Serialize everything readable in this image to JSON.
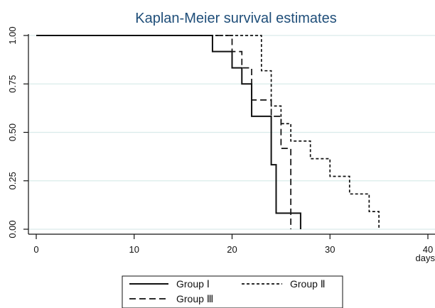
{
  "chart_data": {
    "type": "line",
    "step": true,
    "title": "Kaplan-Meier survival estimates",
    "xlabel": "days",
    "ylabel": "",
    "xlim": [
      0,
      40
    ],
    "ylim": [
      0,
      1
    ],
    "x_ticks": [
      "0",
      "10",
      "20",
      "30",
      "40"
    ],
    "x_tick_values": [
      0,
      10,
      20,
      30,
      40
    ],
    "y_ticks": [
      "0.00",
      "0.25",
      "0.50",
      "0.75",
      "1.00"
    ],
    "y_tick_values": [
      0,
      0.25,
      0.5,
      0.75,
      1.0
    ],
    "grid": "horizontal",
    "legend_position": "bottom",
    "series": [
      {
        "name": "Group I",
        "line_style": "solid",
        "color": "#111111",
        "x": [
          0,
          18,
          20,
          21,
          22,
          24,
          24.5,
          25,
          27
        ],
        "y": [
          1.0,
          0.917,
          0.833,
          0.75,
          0.583,
          0.333,
          0.083,
          0.083,
          0.0
        ]
      },
      {
        "name": "Group II",
        "line_style": "dotted",
        "color": "#111111",
        "x": [
          0,
          23,
          24,
          25,
          26,
          28,
          30,
          32,
          34,
          35
        ],
        "y": [
          1.0,
          0.818,
          0.636,
          0.545,
          0.455,
          0.364,
          0.273,
          0.182,
          0.091,
          0.0
        ]
      },
      {
        "name": "Group III",
        "line_style": "dashed",
        "color": "#111111",
        "x": [
          0,
          20,
          21,
          22,
          24,
          25,
          26
        ],
        "y": [
          1.0,
          0.917,
          0.833,
          0.667,
          0.583,
          0.417,
          0.0
        ]
      }
    ]
  },
  "legend": {
    "group1": "Group Ⅰ",
    "group2": "Group Ⅱ",
    "group3": "Group Ⅲ"
  }
}
